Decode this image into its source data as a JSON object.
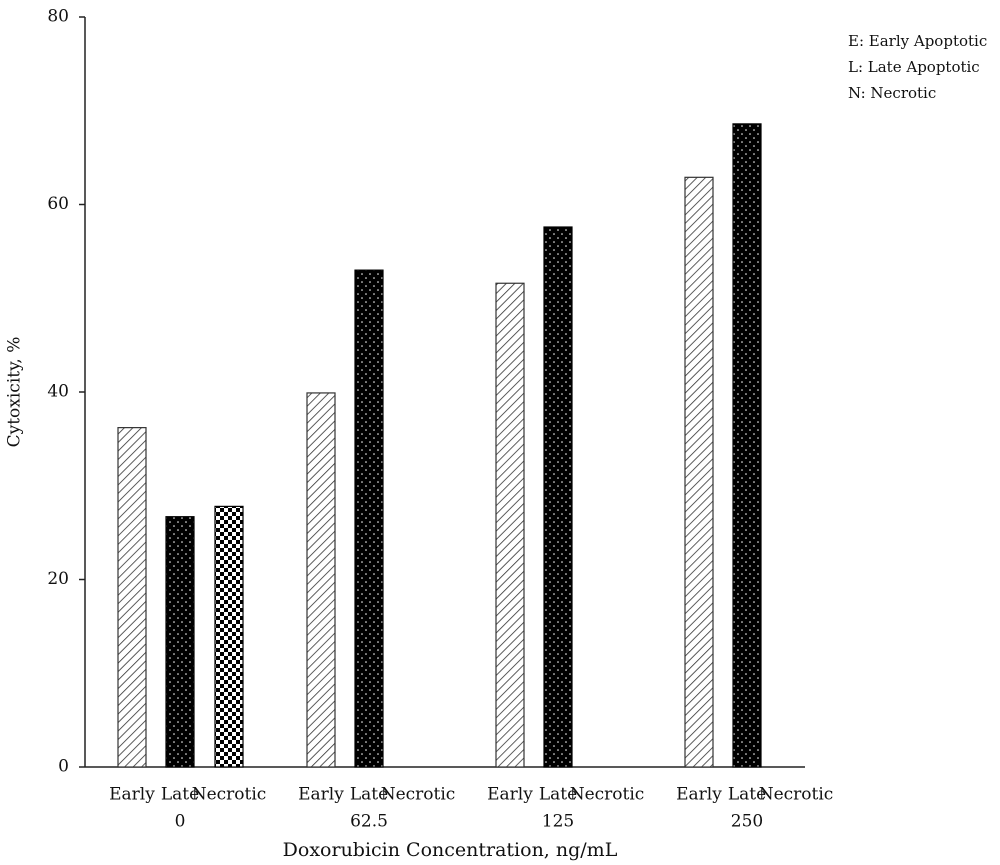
{
  "chart_data": {
    "type": "bar",
    "y_label": "Cytoxicity, %",
    "x_label": "Doxorubicin Concentration, ng/mL",
    "legend_notes": [
      "E: Early Apoptotic",
      "L: Late Apoptotic",
      "N: Necrotic"
    ],
    "categories": [
      "0",
      "62.5",
      "125",
      "250"
    ],
    "series": [
      {
        "name": "Early",
        "pattern": "hatch",
        "color": "#333333",
        "values": [
          36.2,
          39.9,
          51.6,
          62.9
        ]
      },
      {
        "name": "Late",
        "pattern": "dots",
        "color": "#000000",
        "values": [
          26.7,
          53.0,
          57.6,
          68.6
        ]
      },
      {
        "name": "Necrotic",
        "pattern": "checker",
        "color": "#000000",
        "values": [
          27.8,
          null,
          null,
          null
        ]
      }
    ],
    "ylim": [
      0,
      80
    ],
    "yticks": [
      0,
      20,
      40,
      60,
      80
    ],
    "grid": false
  }
}
